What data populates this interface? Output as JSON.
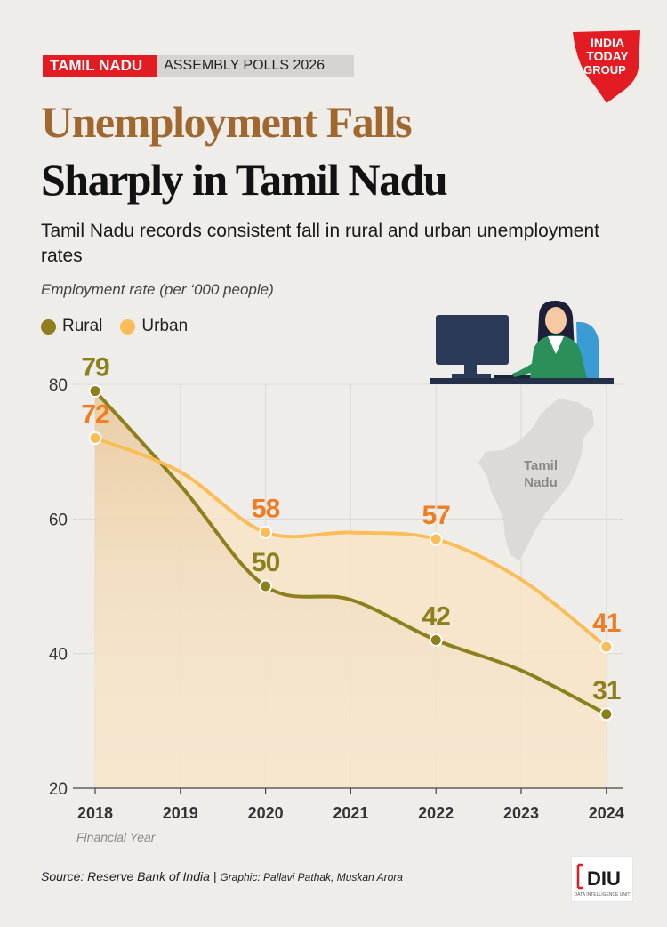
{
  "tag": {
    "state": "TAMIL NADU",
    "event": "ASSEMBLY POLLS  2026"
  },
  "logo": {
    "line1": "INDIA",
    "line2": "TODAY",
    "line3": "GROUP"
  },
  "title": {
    "line1": "Unemployment Falls",
    "line2": "Sharply in Tamil Nadu"
  },
  "subtitle": "Tamil Nadu records consistent fall in rural and urban unemployment rates",
  "map_label": {
    "line1": "Tamil",
    "line2": "Nadu"
  },
  "source": {
    "main": "Source: Reserve Bank of India | ",
    "credit": "Graphic: Pallavi Pathak, Muskan Arora"
  },
  "diu": {
    "mark": "DIU",
    "tagline": "DATA INTELLIGENCE UNIT"
  },
  "colors": {
    "rural": "#8c7f1c",
    "urban": "#fbbd57",
    "rural_label": "#8c7f1c",
    "urban_label": "#ee7d23"
  },
  "chart_data": {
    "type": "line",
    "title": "Unemployment Falls Sharply in Tamil Nadu",
    "ylabel": "Employment rate (per ‘000 people)",
    "xlabel": "Financial Year",
    "categories": [
      "2018",
      "2019",
      "2020",
      "2021",
      "2022",
      "2023",
      "2024"
    ],
    "ylim": [
      20,
      80
    ],
    "yticks": [
      "80",
      "60",
      "40",
      "20"
    ],
    "legend": "top-left",
    "series": [
      {
        "name": "Rural",
        "labeled": [
          79,
          null,
          50,
          null,
          42,
          null,
          31
        ],
        "values": [
          79,
          65,
          50,
          48,
          42,
          37.5,
          31
        ]
      },
      {
        "name": "Urban",
        "labeled": [
          72,
          null,
          58,
          null,
          57,
          null,
          41
        ],
        "values": [
          72,
          67,
          58,
          58,
          57,
          51,
          41
        ]
      }
    ],
    "labels": {
      "rural": [
        "79",
        "50",
        "42",
        "31"
      ],
      "urban": [
        "72",
        "58",
        "57",
        "41"
      ]
    }
  }
}
